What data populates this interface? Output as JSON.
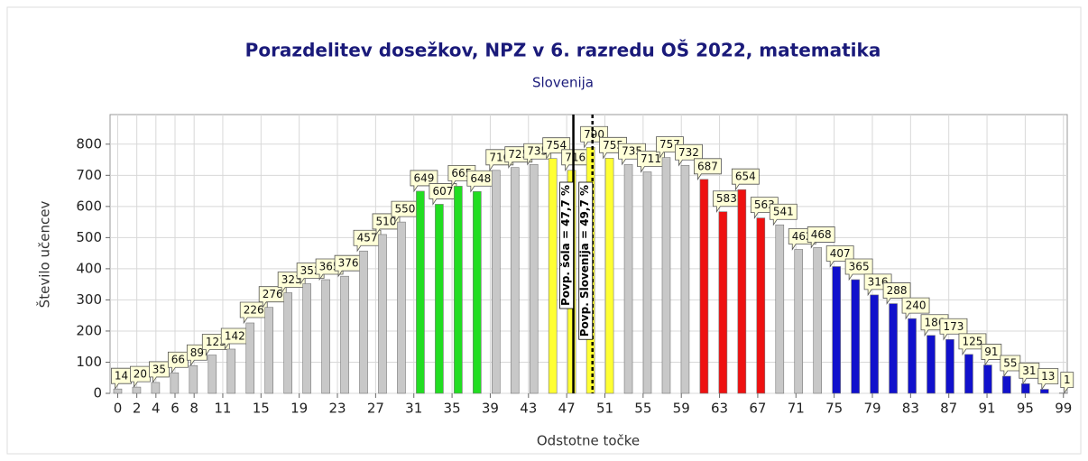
{
  "chart_data": {
    "type": "bar",
    "title": "Porazdelitev dosežkov, NPZ v 6. razredu OŠ 2022, matematika",
    "subtitle": "Slovenija",
    "x_label": "Odstotne točke",
    "y_label": "Število učencev",
    "x": [
      0,
      1.98,
      3.96,
      5.94,
      7.92,
      9.9,
      11.88,
      13.86,
      15.84,
      17.82,
      19.8,
      21.78,
      23.76,
      25.74,
      27.72,
      29.7,
      31.68,
      33.66,
      35.64,
      37.62,
      39.6,
      41.58,
      43.56,
      45.54,
      47.52,
      49.5,
      51.48,
      53.46,
      55.44,
      57.42,
      59.4,
      61.38,
      63.36,
      65.34,
      67.32,
      69.3,
      71.28,
      73.26,
      75.24,
      77.22,
      79.2,
      81.18,
      83.16,
      85.14,
      87.12,
      89.1,
      91.08,
      93.06,
      95.04,
      97.02,
      99
    ],
    "values": [
      14,
      20,
      35,
      66,
      89,
      123,
      142,
      226,
      276,
      323,
      352,
      365,
      376,
      457,
      510,
      550,
      649,
      607,
      665,
      648,
      716,
      725,
      735,
      754,
      716,
      790,
      755,
      735,
      711,
      757,
      732,
      687,
      583,
      654,
      563,
      541,
      462,
      468,
      407,
      365,
      316,
      288,
      240,
      186,
      173,
      125,
      91,
      55,
      31,
      13,
      1
    ],
    "colors": [
      "#c8c8c8",
      "#c8c8c8",
      "#c8c8c8",
      "#c8c8c8",
      "#c8c8c8",
      "#c8c8c8",
      "#c8c8c8",
      "#c8c8c8",
      "#c8c8c8",
      "#c8c8c8",
      "#c8c8c8",
      "#c8c8c8",
      "#c8c8c8",
      "#c8c8c8",
      "#c8c8c8",
      "#c8c8c8",
      "#22dd22",
      "#22dd22",
      "#22dd22",
      "#22dd22",
      "#c8c8c8",
      "#c8c8c8",
      "#c8c8c8",
      "#ffff33",
      "#ffff33",
      "#ffff33",
      "#ffff33",
      "#c8c8c8",
      "#c8c8c8",
      "#c8c8c8",
      "#c8c8c8",
      "#ee1111",
      "#ee1111",
      "#ee1111",
      "#ee1111",
      "#c8c8c8",
      "#c8c8c8",
      "#c8c8c8",
      "#1111cc",
      "#1111cc",
      "#1111cc",
      "#1111cc",
      "#1111cc",
      "#1111cc",
      "#1111cc",
      "#1111cc",
      "#1111cc",
      "#1111cc",
      "#1111cc",
      "#1111cc",
      "#1111cc"
    ],
    "xlim": [
      -0.8,
      99.4
    ],
    "xticks": [
      0,
      2,
      4,
      6,
      8,
      11,
      15,
      19,
      23,
      27,
      31,
      35,
      39,
      43,
      47,
      51,
      55,
      59,
      63,
      67,
      71,
      75,
      79,
      83,
      87,
      91,
      95,
      99
    ],
    "ylim": [
      0,
      895
    ],
    "yticks": [
      0,
      100,
      200,
      300,
      400,
      500,
      600,
      700,
      800
    ],
    "grid": true,
    "reference_lines": [
      {
        "x": 47.7,
        "label": "Povp. šola = 47,7 %",
        "style": "solid"
      },
      {
        "x": 49.7,
        "label": "Povp. Slovenija = 49,7 %",
        "style": "dashed"
      }
    ]
  }
}
